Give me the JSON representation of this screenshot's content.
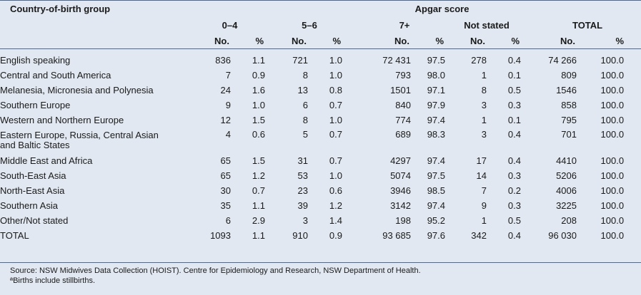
{
  "header": {
    "group_label": "Country-of-birth group",
    "apgar_label": "Apgar score",
    "bands": [
      "0–4",
      "5–6",
      "7+",
      "Not stated",
      "TOTAL"
    ],
    "no_label": "No.",
    "pct_label": "%"
  },
  "rows": [
    {
      "label": "English speaking",
      "v": [
        "836",
        "1.1",
        "721",
        "1.0",
        "72 431",
        "97.5",
        "278",
        "0.4",
        "74 266",
        "100.0"
      ]
    },
    {
      "label": "Central and South America",
      "v": [
        "7",
        "0.9",
        "8",
        "1.0",
        "793",
        "98.0",
        "1",
        "0.1",
        "809",
        "100.0"
      ]
    },
    {
      "label": "Melanesia, Micronesia and Polynesia",
      "v": [
        "24",
        "1.6",
        "13",
        "0.8",
        "1501",
        "97.1",
        "8",
        "0.5",
        "1546",
        "100.0"
      ]
    },
    {
      "label": "Southern Europe",
      "v": [
        "9",
        "1.0",
        "6",
        "0.7",
        "840",
        "97.9",
        "3",
        "0.3",
        "858",
        "100.0"
      ]
    },
    {
      "label": "Western and Northern Europe",
      "v": [
        "12",
        "1.5",
        "8",
        "1.0",
        "774",
        "97.4",
        "1",
        "0.1",
        "795",
        "100.0"
      ]
    },
    {
      "label": "Eastern Europe, Russia, Central Asian",
      "label2": "and Baltic States",
      "v": [
        "4",
        "0.6",
        "5",
        "0.7",
        "689",
        "98.3",
        "3",
        "0.4",
        "701",
        "100.0"
      ]
    },
    {
      "label": "Middle East and Africa",
      "v": [
        "65",
        "1.5",
        "31",
        "0.7",
        "4297",
        "97.4",
        "17",
        "0.4",
        "4410",
        "100.0"
      ]
    },
    {
      "label": "South-East Asia",
      "v": [
        "65",
        "1.2",
        "53",
        "1.0",
        "5074",
        "97.5",
        "14",
        "0.3",
        "5206",
        "100.0"
      ]
    },
    {
      "label": "North-East Asia",
      "v": [
        "30",
        "0.7",
        "23",
        "0.6",
        "3946",
        "98.5",
        "7",
        "0.2",
        "4006",
        "100.0"
      ]
    },
    {
      "label": "Southern Asia",
      "v": [
        "35",
        "1.1",
        "39",
        "1.2",
        "3142",
        "97.4",
        "9",
        "0.3",
        "3225",
        "100.0"
      ]
    },
    {
      "label": "Other/Not stated",
      "v": [
        "6",
        "2.9",
        "3",
        "1.4",
        "198",
        "95.2",
        "1",
        "0.5",
        "208",
        "100.0"
      ]
    },
    {
      "label": "TOTAL",
      "v": [
        "1093",
        "1.1",
        "910",
        "0.9",
        "93 685",
        "97.6",
        "342",
        "0.4",
        "96 030",
        "100.0"
      ]
    }
  ],
  "footnotes": {
    "source": "Source: NSW Midwives Data Collection (HOIST). Centre for Epidemiology and Research, NSW Department of Health.",
    "note": "ªBirths include stillbirths."
  }
}
